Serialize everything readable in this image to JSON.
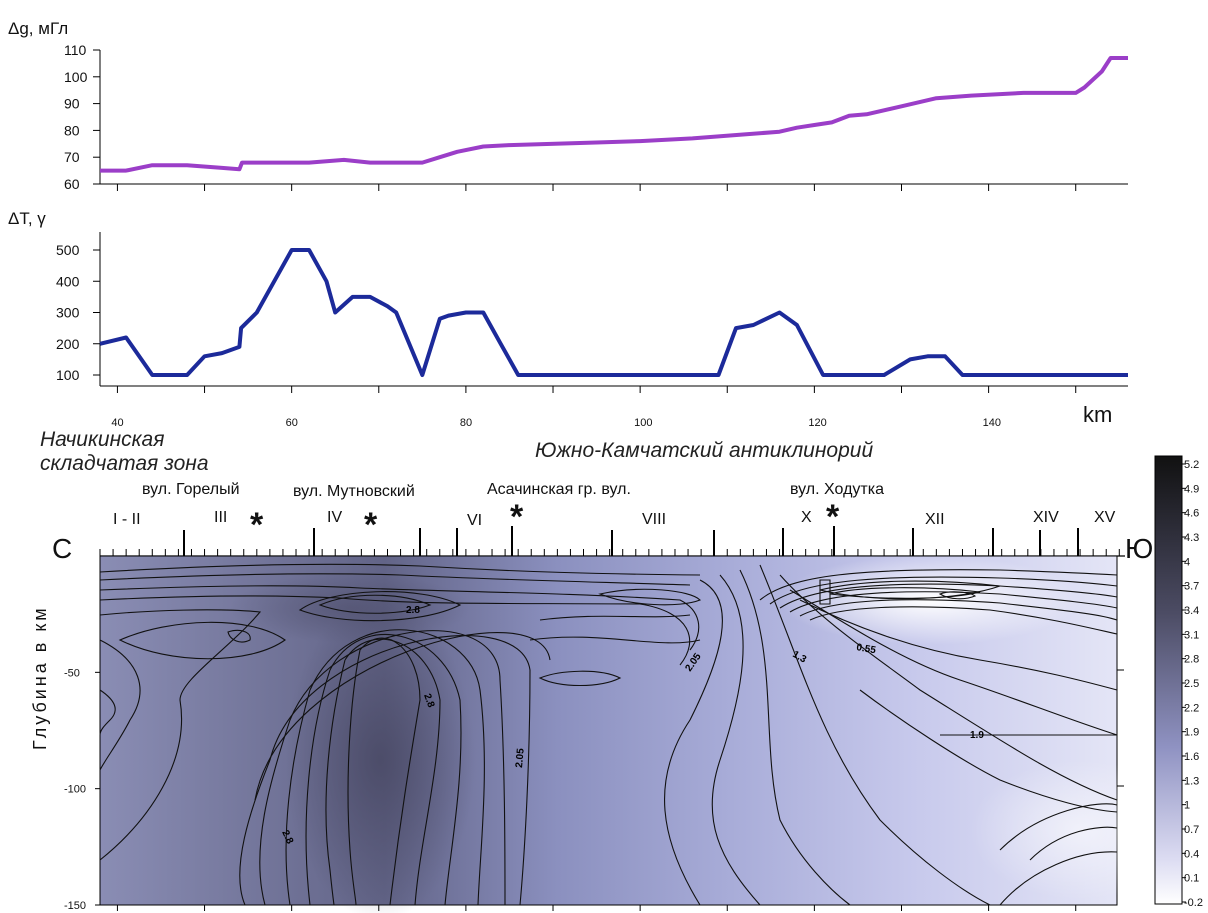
{
  "chart_data": [
    {
      "type": "line",
      "ylabel": "Δg, мГл",
      "ylim": [
        60,
        110
      ],
      "yticks": [
        "110",
        "100",
        "90",
        "80",
        "70",
        "60"
      ],
      "xlim": [
        38,
        156
      ],
      "grid": false,
      "series": [
        {
          "color": "#9b3ec8",
          "x": [
            38,
            41,
            44,
            48,
            52,
            54,
            54.3,
            58,
            62,
            66,
            69,
            72,
            75,
            77,
            79,
            82,
            85,
            95,
            100,
            106,
            112,
            116,
            118,
            120,
            122,
            124,
            126,
            130,
            134,
            138,
            144,
            148,
            150,
            151,
            153,
            154,
            156
          ],
          "y": [
            65,
            65,
            67,
            67,
            66,
            65.5,
            68,
            68,
            68,
            69,
            68,
            68,
            68,
            70,
            72,
            74,
            74.5,
            75.5,
            76,
            77,
            78.5,
            79.5,
            81,
            82,
            83,
            85.5,
            86,
            89,
            92,
            93,
            94,
            94,
            94,
            96,
            102,
            107,
            107
          ]
        }
      ]
    },
    {
      "type": "line",
      "ylabel": "ΔT, γ",
      "ylim": [
        100,
        500
      ],
      "yticks": [
        "500",
        "400",
        "300",
        "200",
        "100"
      ],
      "xticks": [
        "40",
        "60",
        "80",
        "100",
        "120",
        "140"
      ],
      "xunit": "km",
      "xlim": [
        38,
        156
      ],
      "grid": false,
      "series": [
        {
          "color": "#1c2a9a",
          "x": [
            38,
            41,
            44,
            46,
            48,
            50,
            52,
            54,
            54.2,
            56,
            58,
            60,
            62,
            64,
            65,
            67,
            69,
            71,
            72,
            75,
            77,
            78,
            80,
            82,
            84,
            86,
            107,
            109,
            111,
            113,
            116,
            118,
            121,
            124,
            128,
            131,
            133,
            135,
            137,
            156
          ],
          "y": [
            200,
            220,
            100,
            100,
            100,
            160,
            170,
            190,
            250,
            300,
            400,
            500,
            500,
            400,
            300,
            350,
            350,
            320,
            300,
            100,
            280,
            290,
            300,
            300,
            200,
            100,
            100,
            100,
            250,
            260,
            300,
            260,
            100,
            100,
            100,
            150,
            160,
            160,
            100,
            100
          ]
        }
      ]
    },
    {
      "type": "heatmap",
      "ylabel": "Глубина в км",
      "ylim": [
        -150,
        0
      ],
      "yticks": [
        "-50",
        "-100",
        "-150"
      ],
      "xlim": [
        38,
        156
      ],
      "colorbar": {
        "values": [
          "5.2",
          "4.9",
          "4.6",
          "4.3",
          "4",
          "3.7",
          "3.4",
          "3.1",
          "2.8",
          "2.5",
          "2.2",
          "1.9",
          "1.6",
          "1.3",
          "1",
          "0.7",
          "0.4",
          "0.1",
          "-0.2"
        ],
        "range": [
          -0.2,
          5.2
        ]
      },
      "contour_labels": [
        "2.8",
        "2.05",
        "1.3",
        "0.55",
        "2.8",
        "2.05",
        "1.9",
        "2.8"
      ]
    }
  ],
  "zones": {
    "left_line1": "Начикинская",
    "left_line2": "складчатая зона",
    "center": "Южно-Камчатский антиклинорий"
  },
  "volcanoes": [
    "вул. Горелый",
    "вул. Мутновский",
    "Асачинская гр. вул.",
    "вул. Ходутка"
  ],
  "profile_numbers": [
    "I - II",
    "III",
    "IV",
    "VI",
    "VIII",
    "X",
    "XII",
    "XIV",
    "XV"
  ],
  "directions": {
    "north": "С",
    "south": "Ю"
  }
}
